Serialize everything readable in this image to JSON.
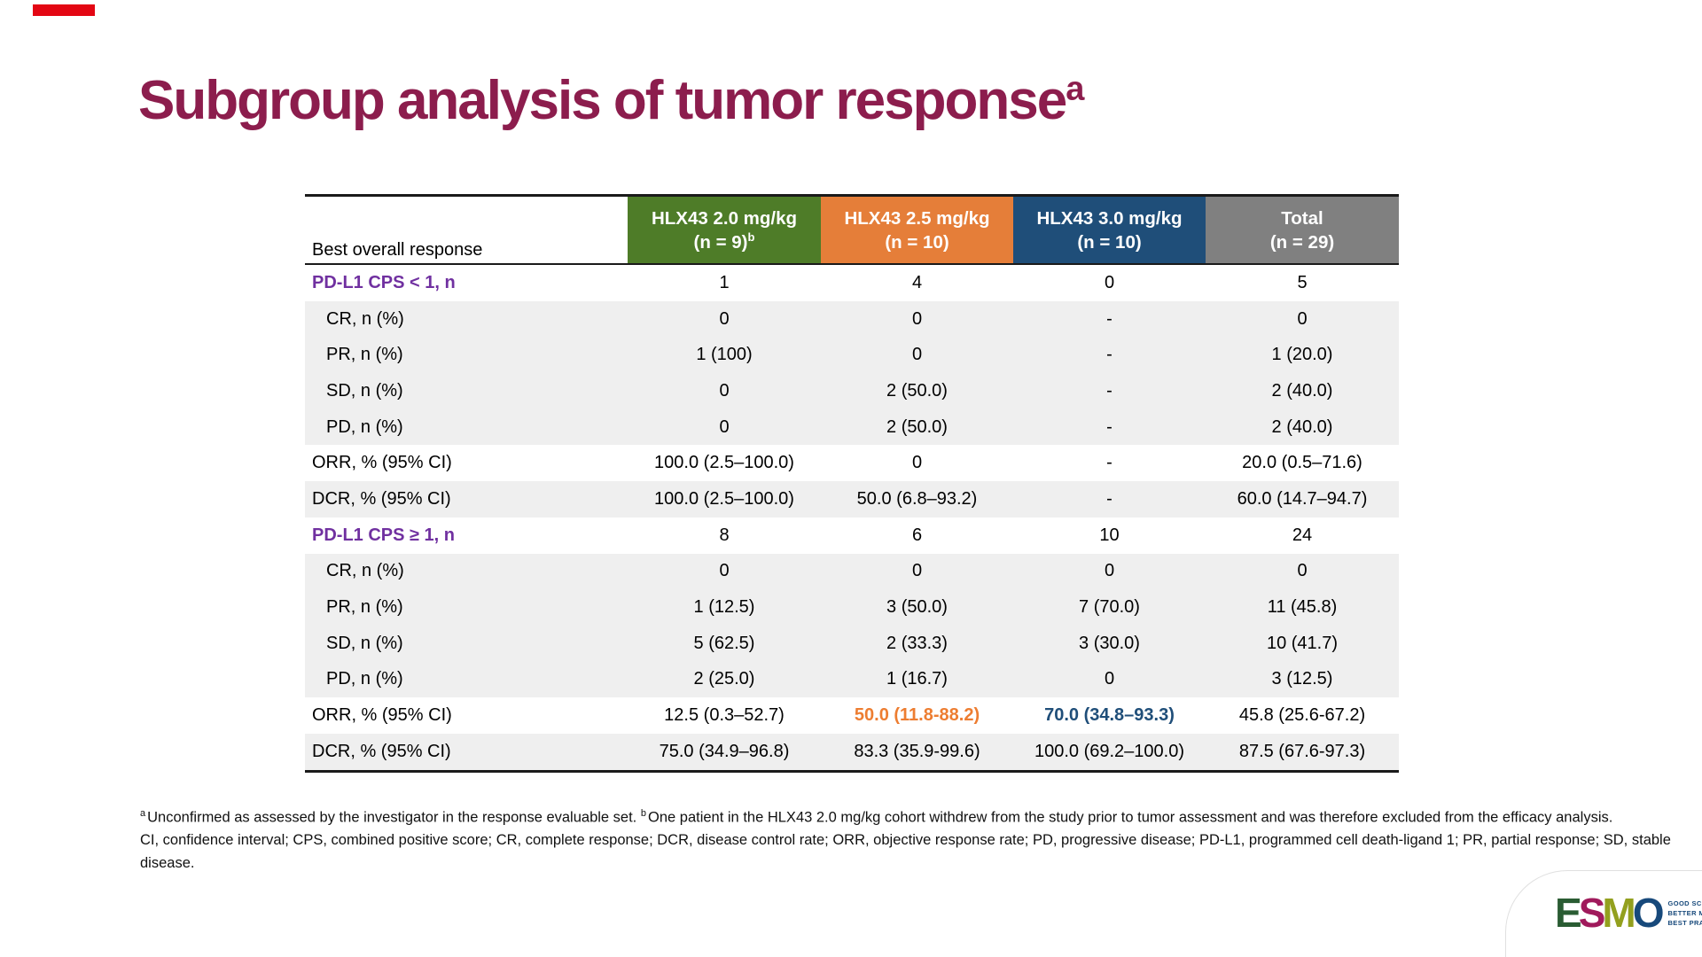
{
  "slide": {
    "title": "Subgroup analysis of tumor response",
    "title_sup": "a",
    "accent_bar_color": "#e30613",
    "title_color": "#8c1d4d"
  },
  "table": {
    "corner_label": "Best overall response",
    "columns": [
      {
        "line1": "HLX43 2.0 mg/kg",
        "line2": "(n = 9)",
        "sup": "b",
        "color": "#4e7c28"
      },
      {
        "line1": "HLX43 2.5 mg/kg",
        "line2": "(n = 10)",
        "sup": "",
        "color": "#e57e39"
      },
      {
        "line1": "HLX43 3.0 mg/kg",
        "line2": "(n = 10)",
        "sup": "",
        "color": "#1f4e79"
      },
      {
        "line1": "Total",
        "line2": "(n = 29)",
        "sup": "",
        "color": "#808080"
      }
    ],
    "section_label_color": "#7030a0",
    "stripe_color": "#efefef",
    "highlight_colors": {
      "orange": "#ed7d31",
      "blue": "#1f4e79"
    },
    "rows": [
      {
        "label": "PD-L1 CPS < 1, n",
        "type": "section",
        "values": [
          "1",
          "4",
          "0",
          "5"
        ],
        "styles": [
          "",
          "",
          "",
          ""
        ]
      },
      {
        "label": "CR, n (%)",
        "type": "sub",
        "values": [
          "0",
          "0",
          "-",
          "0"
        ],
        "styles": [
          "",
          "",
          "",
          ""
        ]
      },
      {
        "label": "PR, n (%)",
        "type": "sub",
        "values": [
          "1 (100)",
          "0",
          "-",
          "1 (20.0)"
        ],
        "styles": [
          "",
          "",
          "",
          ""
        ]
      },
      {
        "label": "SD, n (%)",
        "type": "sub",
        "values": [
          "0",
          "2 (50.0)",
          "-",
          "2 (40.0)"
        ],
        "styles": [
          "",
          "",
          "",
          ""
        ]
      },
      {
        "label": "PD, n (%)",
        "type": "sub",
        "values": [
          "0",
          "2 (50.0)",
          "-",
          "2 (40.0)"
        ],
        "styles": [
          "",
          "",
          "",
          ""
        ]
      },
      {
        "label": "ORR, % (95% CI)",
        "type": "stat",
        "values": [
          "100.0 (2.5–100.0)",
          "0",
          "-",
          "20.0 (0.5–71.6)"
        ],
        "styles": [
          "",
          "",
          "",
          ""
        ]
      },
      {
        "label": "DCR, % (95% CI)",
        "type": "stat",
        "values": [
          "100.0 (2.5–100.0)",
          "50.0 (6.8–93.2)",
          "-",
          "60.0 (14.7–94.7)"
        ],
        "styles": [
          "",
          "",
          "",
          ""
        ]
      },
      {
        "label": "PD-L1 CPS ≥ 1, n",
        "type": "section",
        "values": [
          "8",
          "6",
          "10",
          "24"
        ],
        "styles": [
          "",
          "",
          "",
          ""
        ]
      },
      {
        "label": "CR, n (%)",
        "type": "sub",
        "values": [
          "0",
          "0",
          "0",
          "0"
        ],
        "styles": [
          "",
          "",
          "",
          ""
        ]
      },
      {
        "label": "PR, n (%)",
        "type": "sub",
        "values": [
          "1 (12.5)",
          "3 (50.0)",
          "7 (70.0)",
          "11 (45.8)"
        ],
        "styles": [
          "",
          "",
          "",
          ""
        ]
      },
      {
        "label": "SD, n (%)",
        "type": "sub",
        "values": [
          "5 (62.5)",
          "2 (33.3)",
          "3 (30.0)",
          "10 (41.7)"
        ],
        "styles": [
          "",
          "",
          "",
          ""
        ]
      },
      {
        "label": "PD, n (%)",
        "type": "sub",
        "values": [
          "2 (25.0)",
          "1 (16.7)",
          "0",
          "3 (12.5)"
        ],
        "styles": [
          "",
          "",
          "",
          ""
        ]
      },
      {
        "label": "ORR, % (95% CI)",
        "type": "stat",
        "values": [
          "12.5 (0.3–52.7)",
          "50.0 (11.8-88.2)",
          "70.0 (34.8–93.3)",
          "45.8 (25.6-67.2)"
        ],
        "styles": [
          "",
          "orange",
          "blue",
          ""
        ]
      },
      {
        "label": "DCR, % (95% CI)",
        "type": "stat",
        "values": [
          "75.0 (34.9–96.8)",
          "83.3 (35.9-99.6)",
          "100.0 (69.2–100.0)",
          "87.5 (67.6-97.3)"
        ],
        "styles": [
          "",
          "",
          "",
          ""
        ]
      }
    ]
  },
  "footnotes": {
    "sup_a": "a",
    "part_a": "Unconfirmed as assessed by the investigator in the response evaluable set.",
    "sup_b": "b",
    "part_b": "One patient in the HLX43 2.0 mg/kg cohort withdrew from the study prior to tumor assessment and was therefore excluded from the efficacy analysis.",
    "line2": "CI, confidence interval; CPS, combined positive score; CR, complete response; DCR, disease control rate; ORR, objective response rate; PD, progressive disease; PD-L1, programmed cell death-ligand 1; PR, partial response; SD, stable disease."
  },
  "logo": {
    "letters": [
      {
        "char": "E",
        "color": "#2a5c33"
      },
      {
        "char": "S",
        "color": "#a01a5c"
      },
      {
        "char": "M",
        "color": "#93a01e"
      },
      {
        "char": "O",
        "color": "#17497b"
      }
    ],
    "tagline": [
      "GOOD SCIENCE",
      "BETTER MEDICINE",
      "BEST PRACTICE"
    ],
    "tagline_color": "#17497b"
  }
}
